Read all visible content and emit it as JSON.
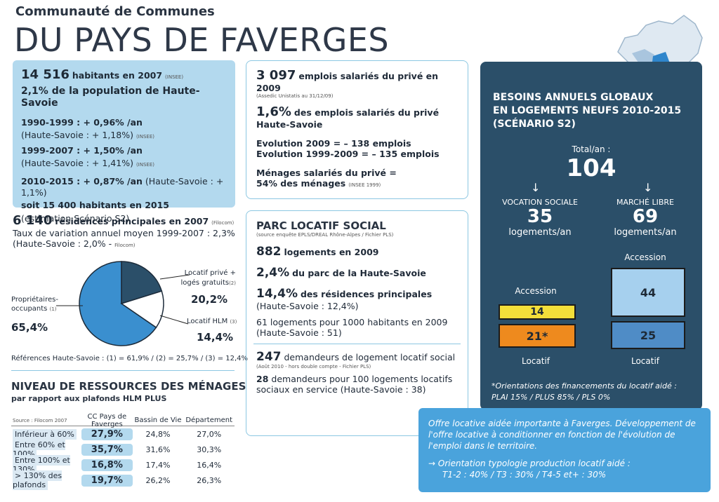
{
  "header": {
    "subtitle": "Communauté de Communes",
    "title": "DU PAYS DE FAVERGES"
  },
  "population": {
    "line1_num": "14 516",
    "line1_text": "habitants en 2007",
    "line1_src": "(INSEE)",
    "line2_num": "2,1%",
    "line2_text": "de la population de Haute-Savoie",
    "p1_bold": "1990-1999 : + 0,96% /an",
    "p1_sub": "(Haute-Savoie : + 1,18%)",
    "p1_src": "(INSEE)",
    "p2_bold": "1999-2007 : + 1,50% /an",
    "p2_sub": "(Haute-Savoie : + 1,41%)",
    "p2_src": "(INSEE)",
    "p3_bold": "2010-2015 : + 0,87% /an",
    "p3_sub": "(Haute-Savoie : + 1,1%)",
    "p3_line2": "soit 15 400 habitants en 2015",
    "p3_line3": "(estimation Scénario S2)"
  },
  "residences": {
    "num": "6 140",
    "text": "résidences principales en 2007",
    "src": "(Filocom)",
    "line2": "Taux de variation annuel moyen 1999-2007 : 2,3%",
    "line3": "(Haute-Savoie : 2,0% -",
    "line3_src": "Filocom)",
    "prop_label": "Propriétaires-occupants",
    "prop_src": "(1)",
    "prop_val": "65,4%",
    "prive_label": "Locatif privé + logés gratuits",
    "prive_src": "(2)",
    "prive_val": "20,2%",
    "hlm_label": "Locatif HLM",
    "hlm_src": "(3)",
    "hlm_val": "14,4%",
    "refs": "Références Haute-Savoie : (1) = 61,9% / (2) = 25,7% / (3) = 12,4%"
  },
  "chart_data": {
    "type": "pie",
    "values": [
      65.4,
      20.2,
      14.4
    ],
    "labels": [
      "Propriétaires-occupants",
      "Locatif privé + logés gratuits",
      "Locatif HLM"
    ],
    "colors": [
      "#3a8fcf",
      "#2b4f69",
      "#ffffff"
    ]
  },
  "resources": {
    "title": "NIVEAU DE RESSOURCES DES MÉNAGES",
    "subtitle": "par rapport aux plafonds HLM PLUS",
    "source": "Source : Filocom 2007",
    "headers": [
      "CC Pays de Faverges",
      "Bassin de Vie",
      "Département"
    ],
    "rows": [
      [
        "Inférieur à 60%",
        "27,9%",
        "24,8%",
        "27,0%"
      ],
      [
        "Entre 60% et 100%",
        "35,7%",
        "31,6%",
        "30,3%"
      ],
      [
        "Entre 100% et 130%",
        "16,8%",
        "17,4%",
        "16,4%"
      ],
      [
        "> 130% des plafonds",
        "19,7%",
        "26,2%",
        "26,3%"
      ]
    ]
  },
  "emplois": {
    "num": "3 097",
    "text": "emplois salariés du privé en 2009",
    "src": "(Assedic Unistatis au 31/12/09)",
    "pct": "1,6%",
    "pct_text": "des emplois salariés du privé",
    "pct_text2": "Haute-Savoie",
    "evo1": "Evolution 2009 = – 138 emplois",
    "evo2": "Evolution 1999-2009 = – 135 emplois",
    "men1": "Ménages salariés du privé =",
    "men2": "54% des ménages",
    "men_src": "(INSEE 1999)"
  },
  "parc": {
    "title": "PARC LOCATIF SOCIAL",
    "src": "(source enquête EPLS/DREAL Rhône-Alpes / Fichier PLS)",
    "l1_num": "882",
    "l1_text": "logements en 2009",
    "l2_num": "2,4%",
    "l2_text": "du parc de la Haute-Savoie",
    "l3_num": "14,4%",
    "l3_text": "des résidences principales",
    "l3_sub": "(Haute-Savoie : 12,4%)",
    "l4": "61 logements pour 1000 habitants en 2009",
    "l4_sub": "(Haute-Savoie : 51)",
    "l5_num": "247",
    "l5_text": "demandeurs de logement locatif social",
    "l5_src": "(Août 2010 - hors double compte - Fichier PLS)",
    "l6_num": "28",
    "l6_text": "demandeurs pour 100 logements locatifs",
    "l6_text2": "sociaux en service (Haute-Savoie : 38)"
  },
  "besoins": {
    "title1": "BESOINS ANNUELS GLOBAUX",
    "title2": "EN LOGEMENTS NEUFS 2010-2015",
    "title3": "(SCÉNARIO S2)",
    "total_label": "Total/an :",
    "total": "104",
    "soc_label": "VOCATION SOCIALE",
    "soc_val": "35",
    "soc_unit": "logements/an",
    "lib_label": "MARCHÉ LIBRE",
    "lib_val": "69",
    "lib_unit": "logements/an",
    "accession": "Accession",
    "locatif": "Locatif",
    "soc_acc": "14",
    "soc_loc": "21*",
    "lib_acc": "44",
    "lib_loc": "25",
    "note1": "*Orientations des financements du locatif aidé :",
    "note2": "PLAI 15% / PLUS 85% / PLS 0%",
    "colors": {
      "soc_acc": "#f3df3a",
      "soc_loc": "#ee8a1e",
      "lib_acc": "#a6d0ee",
      "lib_loc": "#4f8cc6"
    }
  },
  "offre": {
    "p1": "Offre locative aidée importante à Faverges. Développement de l'offre locative à conditionner en fonction de l'évolution de l'emploi dans le territoire.",
    "p2": "Orientation typologie production locatif aidé :",
    "p3": "T1-2 : 40% / T3 : 30% / T4-5 et+ : 30%"
  }
}
